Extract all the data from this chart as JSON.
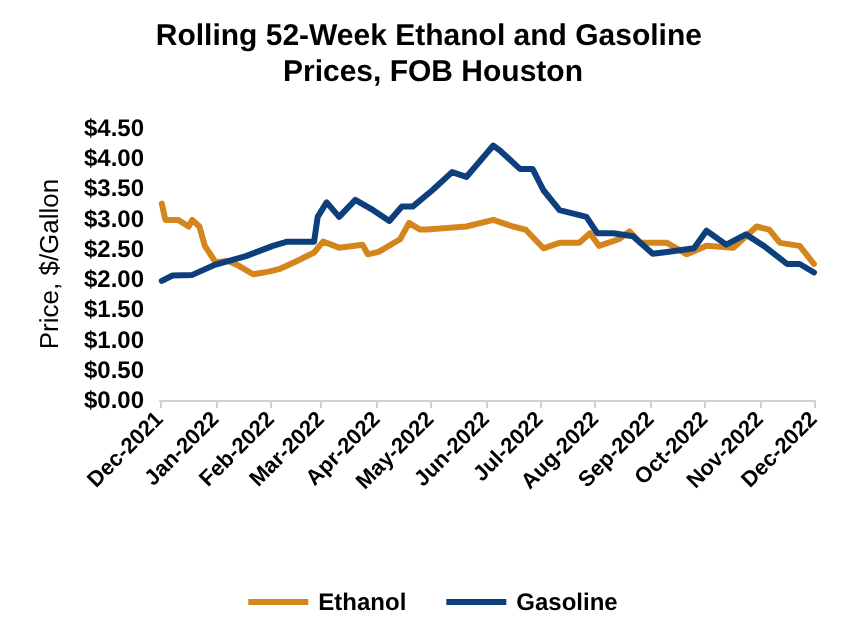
{
  "chart_data": {
    "type": "line",
    "title": "Rolling 52-Week Ethanol and Gasoline Prices, FOB Houston",
    "ylabel": "Price, $/Gallon",
    "xlim": [
      "2021-12-01",
      "2022-12-01"
    ],
    "xticks": [
      {
        "value": "2021-12-01",
        "label": "Dec-2021"
      },
      {
        "value": "2022-01-01",
        "label": "Jan-2022"
      },
      {
        "value": "2022-02-01",
        "label": "Feb-2022"
      },
      {
        "value": "2022-03-01",
        "label": "Mar-2022"
      },
      {
        "value": "2022-04-01",
        "label": "Apr-2022"
      },
      {
        "value": "2022-05-01",
        "label": "May-2022"
      },
      {
        "value": "2022-06-01",
        "label": "Jun-2022"
      },
      {
        "value": "2022-07-01",
        "label": "Jul-2022"
      },
      {
        "value": "2022-08-01",
        "label": "Aug-2022"
      },
      {
        "value": "2022-09-01",
        "label": "Sep-2022"
      },
      {
        "value": "2022-10-01",
        "label": "Oct-2022"
      },
      {
        "value": "2022-11-01",
        "label": "Nov-2022"
      },
      {
        "value": "2022-12-01",
        "label": "Dec-2022"
      }
    ],
    "ylim": [
      0,
      4.5
    ],
    "yticks": [
      {
        "value": 0,
        "label": "$0.00"
      },
      {
        "value": 0.5,
        "label": "$0.50"
      },
      {
        "value": 1,
        "label": "$1.00"
      },
      {
        "value": 1.5,
        "label": "$1.50"
      },
      {
        "value": 2,
        "label": "$2.00"
      },
      {
        "value": 2.5,
        "label": "$2.50"
      },
      {
        "value": 3,
        "label": "$3.00"
      },
      {
        "value": 3.5,
        "label": "$3.50"
      },
      {
        "value": 4,
        "label": "$4.00"
      },
      {
        "value": 4.5,
        "label": "$4.50"
      }
    ],
    "grid": false,
    "legend": "bottom",
    "marker": "none",
    "line_style": "solid",
    "series": [
      {
        "name": "Ethanol",
        "color": "#d4861c",
        "x": [
          "2021-12-02",
          "2021-12-04",
          "2021-12-11",
          "2021-12-17",
          "2021-12-19",
          "2021-12-23",
          "2021-12-26",
          "2022-01-01",
          "2022-01-08",
          "2022-01-14",
          "2022-01-22",
          "2022-01-30",
          "2022-02-06",
          "2022-02-14",
          "2022-02-25",
          "2022-03-02",
          "2022-03-11",
          "2022-03-24",
          "2022-03-27",
          "2022-04-02",
          "2022-04-14",
          "2022-04-19",
          "2022-04-25",
          "2022-04-29",
          "2022-05-21",
          "2022-06-05",
          "2022-06-16",
          "2022-06-23",
          "2022-07-03",
          "2022-07-12",
          "2022-07-23",
          "2022-07-29",
          "2022-08-03",
          "2022-08-14",
          "2022-08-20",
          "2022-08-26",
          "2022-09-10",
          "2022-09-21",
          "2022-10-02",
          "2022-10-17",
          "2022-10-30",
          "2022-11-06",
          "2022-11-12",
          "2022-11-23",
          "2022-12-01"
        ],
        "values": [
          3.25,
          2.98,
          2.98,
          2.87,
          2.98,
          2.87,
          2.55,
          2.28,
          2.3,
          2.22,
          2.08,
          2.12,
          2.17,
          2.28,
          2.44,
          2.62,
          2.52,
          2.57,
          2.41,
          2.45,
          2.66,
          2.93,
          2.82,
          2.82,
          2.87,
          2.98,
          2.87,
          2.82,
          2.51,
          2.6,
          2.6,
          2.76,
          2.55,
          2.66,
          2.79,
          2.6,
          2.6,
          2.41,
          2.55,
          2.52,
          2.87,
          2.82,
          2.6,
          2.55,
          2.25
        ]
      },
      {
        "name": "Gasoline",
        "color": "#0d3f7c",
        "x": [
          "2021-12-02",
          "2021-12-08",
          "2021-12-19",
          "2022-01-01",
          "2022-01-18",
          "2022-02-02",
          "2022-02-10",
          "2022-02-25",
          "2022-02-27",
          "2022-03-04",
          "2022-03-11",
          "2022-03-20",
          "2022-03-30",
          "2022-04-08",
          "2022-04-15",
          "2022-04-21",
          "2022-05-02",
          "2022-05-13",
          "2022-05-21",
          "2022-06-05",
          "2022-06-09",
          "2022-06-20",
          "2022-06-27",
          "2022-07-03",
          "2022-07-12",
          "2022-07-27",
          "2022-08-02",
          "2022-08-11",
          "2022-08-22",
          "2022-09-02",
          "2022-09-10",
          "2022-09-25",
          "2022-10-02",
          "2022-10-13",
          "2022-10-24",
          "2022-11-03",
          "2022-11-16",
          "2022-11-23",
          "2022-12-01"
        ],
        "values": [
          1.97,
          2.06,
          2.07,
          2.24,
          2.38,
          2.55,
          2.62,
          2.62,
          3.03,
          3.27,
          3.03,
          3.31,
          3.14,
          2.96,
          3.2,
          3.2,
          3.47,
          3.77,
          3.69,
          4.21,
          4.12,
          3.82,
          3.82,
          3.47,
          3.14,
          3.03,
          2.76,
          2.76,
          2.71,
          2.42,
          2.45,
          2.51,
          2.8,
          2.57,
          2.74,
          2.55,
          2.25,
          2.25,
          2.11
        ]
      }
    ]
  }
}
